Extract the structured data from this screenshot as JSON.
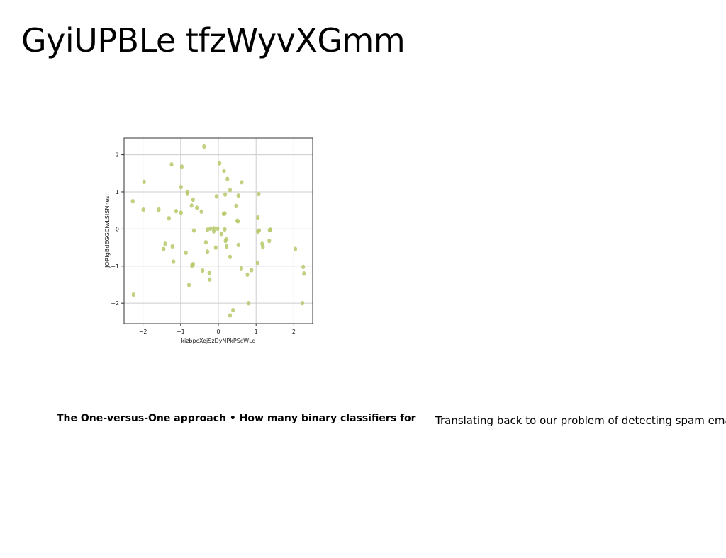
{
  "slide": {
    "title": "GyiUPBLe tfzWyvXGmm",
    "caption_left": "The One-versus-One approach • How many binary classifiers for",
    "caption_right": "Translating back to our problem of detecting spam emails"
  },
  "chart_data": {
    "type": "scatter",
    "title": "",
    "xlabel": "kizbpcXejSzDyNPkPScWLd",
    "ylabel": "JORIgBdEGGCIwLSISNnesI",
    "xlim": [
      -2.5,
      2.5
    ],
    "ylim": [
      -2.55,
      2.45
    ],
    "xticks": [
      -2,
      -1,
      0,
      1,
      2
    ],
    "yticks": [
      -2,
      -1,
      0,
      1,
      2
    ],
    "xtick_labels": [
      "−2",
      "−1",
      "0",
      "1",
      "2"
    ],
    "ytick_labels": [
      "−2",
      "−1",
      "0",
      "1",
      "2"
    ],
    "grid": true,
    "point_color": "#b5c96a",
    "frame_color": "#333333",
    "grid_color": "#cccccc",
    "points": [
      {
        "x": -0.38,
        "y": 2.22
      },
      {
        "x": -1.24,
        "y": 1.74
      },
      {
        "x": -0.97,
        "y": 1.68
      },
      {
        "x": 0.03,
        "y": 1.77
      },
      {
        "x": 0.15,
        "y": 1.56
      },
      {
        "x": -1.97,
        "y": 1.27
      },
      {
        "x": 0.24,
        "y": 1.35
      },
      {
        "x": 0.62,
        "y": 1.26
      },
      {
        "x": -0.99,
        "y": 1.13
      },
      {
        "x": 0.31,
        "y": 1.05
      },
      {
        "x": -0.82,
        "y": 1.0
      },
      {
        "x": -0.82,
        "y": 0.95
      },
      {
        "x": 0.18,
        "y": 0.93
      },
      {
        "x": 1.07,
        "y": 0.94
      },
      {
        "x": 0.53,
        "y": 0.9
      },
      {
        "x": -0.05,
        "y": 0.88
      },
      {
        "x": -0.67,
        "y": 0.79
      },
      {
        "x": -2.27,
        "y": 0.75
      },
      {
        "x": -0.71,
        "y": 0.63
      },
      {
        "x": 0.47,
        "y": 0.62
      },
      {
        "x": -0.57,
        "y": 0.57
      },
      {
        "x": -1.99,
        "y": 0.52
      },
      {
        "x": -1.58,
        "y": 0.52
      },
      {
        "x": -1.12,
        "y": 0.48
      },
      {
        "x": -0.45,
        "y": 0.47
      },
      {
        "x": -0.99,
        "y": 0.44
      },
      {
        "x": 0.17,
        "y": 0.42
      },
      {
        "x": 0.14,
        "y": 0.41
      },
      {
        "x": 1.05,
        "y": 0.31
      },
      {
        "x": -1.31,
        "y": 0.29
      },
      {
        "x": 0.52,
        "y": 0.21
      },
      {
        "x": 0.5,
        "y": 0.22
      },
      {
        "x": -0.12,
        "y": 0.02
      },
      {
        "x": -0.21,
        "y": 0.01
      },
      {
        "x": -0.02,
        "y": 0.01
      },
      {
        "x": 0.17,
        "y": -0.01
      },
      {
        "x": -0.29,
        "y": -0.02
      },
      {
        "x": 1.36,
        "y": -0.03
      },
      {
        "x": 1.38,
        "y": -0.02
      },
      {
        "x": -0.65,
        "y": -0.04
      },
      {
        "x": -0.12,
        "y": -0.06
      },
      {
        "x": 1.08,
        "y": -0.04
      },
      {
        "x": 1.05,
        "y": -0.07
      },
      {
        "x": 0.08,
        "y": -0.13
      },
      {
        "x": 0.21,
        "y": -0.28
      },
      {
        "x": 0.19,
        "y": -0.32
      },
      {
        "x": 1.35,
        "y": -0.32
      },
      {
        "x": -0.33,
        "y": -0.36
      },
      {
        "x": -1.41,
        "y": -0.4
      },
      {
        "x": 1.16,
        "y": -0.4
      },
      {
        "x": 0.53,
        "y": -0.43
      },
      {
        "x": -1.22,
        "y": -0.47
      },
      {
        "x": 0.22,
        "y": -0.47
      },
      {
        "x": 1.18,
        "y": -0.49
      },
      {
        "x": -0.07,
        "y": -0.5
      },
      {
        "x": -1.45,
        "y": -0.54
      },
      {
        "x": 2.04,
        "y": -0.54
      },
      {
        "x": -0.29,
        "y": -0.61
      },
      {
        "x": -0.86,
        "y": -0.64
      },
      {
        "x": 0.31,
        "y": -0.75
      },
      {
        "x": -1.19,
        "y": -0.88
      },
      {
        "x": 1.04,
        "y": -0.91
      },
      {
        "x": -0.67,
        "y": -0.95
      },
      {
        "x": -0.7,
        "y": -0.99
      },
      {
        "x": 2.25,
        "y": -1.02
      },
      {
        "x": 0.61,
        "y": -1.06
      },
      {
        "x": 0.88,
        "y": -1.11
      },
      {
        "x": -0.42,
        "y": -1.12
      },
      {
        "x": -0.24,
        "y": -1.18
      },
      {
        "x": 2.27,
        "y": -1.2
      },
      {
        "x": 0.77,
        "y": -1.23
      },
      {
        "x": -0.23,
        "y": -1.36
      },
      {
        "x": -0.78,
        "y": -1.51
      },
      {
        "x": -2.25,
        "y": -1.77
      },
      {
        "x": 0.8,
        "y": -2.0
      },
      {
        "x": 2.23,
        "y": -2.0
      },
      {
        "x": 0.39,
        "y": -2.19
      },
      {
        "x": 0.31,
        "y": -2.33
      }
    ]
  }
}
